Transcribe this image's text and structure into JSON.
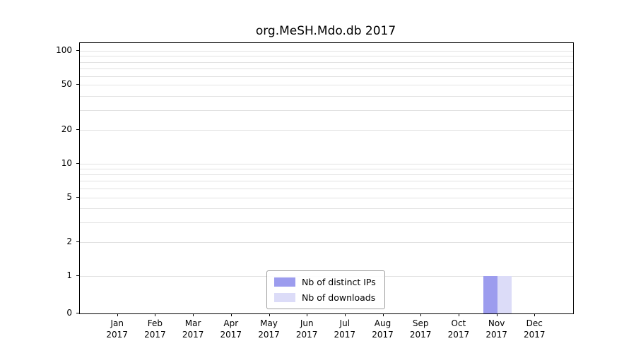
{
  "chart_data": {
    "type": "bar",
    "title": "org.MeSH.Mdo.db 2017",
    "categories": [
      "Jan 2017",
      "Feb 2017",
      "Mar 2017",
      "Apr 2017",
      "May 2017",
      "Jun 2017",
      "Jul 2017",
      "Aug 2017",
      "Sep 2017",
      "Oct 2017",
      "Nov 2017",
      "Dec 2017"
    ],
    "x_tick_top": [
      "Jan",
      "Feb",
      "Mar",
      "Apr",
      "May",
      "Jun",
      "Jul",
      "Aug",
      "Sep",
      "Oct",
      "Nov",
      "Dec"
    ],
    "x_tick_bottom": "2017",
    "series": [
      {
        "name": "Nb of distinct IPs",
        "color": "#9c9cee",
        "values": [
          0,
          0,
          0,
          0,
          0,
          0,
          0,
          0,
          0,
          0,
          1,
          0
        ]
      },
      {
        "name": "Nb of downloads",
        "color": "#dcdcf8",
        "values": [
          0,
          0,
          0,
          0,
          0,
          0,
          0,
          0,
          0,
          0,
          1,
          0
        ]
      }
    ],
    "y_ticks": [
      0,
      1,
      2,
      5,
      10,
      20,
      50,
      100
    ],
    "y_scale": "symlog",
    "ylim": [
      0,
      115
    ],
    "grid": "horizontal-minor",
    "minor_gridlines": [
      1,
      2,
      3,
      4,
      5,
      6,
      7,
      8,
      9,
      10,
      20,
      30,
      40,
      50,
      60,
      70,
      80,
      90,
      100
    ],
    "legend_position": "lower-center"
  }
}
